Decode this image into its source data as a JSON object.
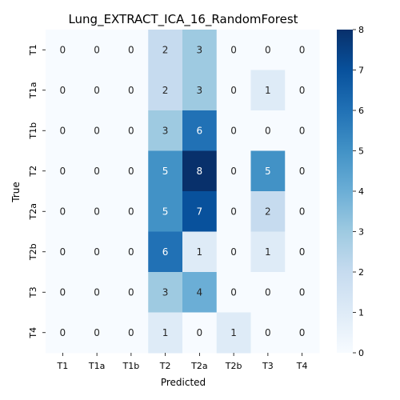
{
  "chart_data": {
    "type": "heatmap",
    "title": "Lung_EXTRACT_ICA_16_RandomForest",
    "xlabel": "Predicted",
    "ylabel": "True",
    "x_categories": [
      "T1",
      "T1a",
      "T1b",
      "T2",
      "T2a",
      "T2b",
      "T3",
      "T4"
    ],
    "y_categories": [
      "T1",
      "T1a",
      "T1b",
      "T2",
      "T2a",
      "T2b",
      "T3",
      "T4"
    ],
    "values": [
      [
        0,
        0,
        0,
        2,
        3,
        0,
        0,
        0
      ],
      [
        0,
        0,
        0,
        2,
        3,
        0,
        1,
        0
      ],
      [
        0,
        0,
        0,
        3,
        6,
        0,
        0,
        0
      ],
      [
        0,
        0,
        0,
        5,
        8,
        0,
        5,
        0
      ],
      [
        0,
        0,
        0,
        5,
        7,
        0,
        2,
        0
      ],
      [
        0,
        0,
        0,
        6,
        1,
        0,
        1,
        0
      ],
      [
        0,
        0,
        0,
        3,
        4,
        0,
        0,
        0
      ],
      [
        0,
        0,
        0,
        1,
        0,
        1,
        0,
        0
      ]
    ],
    "colorbar": {
      "min": 0,
      "max": 8,
      "ticks": [
        "0",
        "1",
        "2",
        "3",
        "4",
        "5",
        "6",
        "7",
        "8"
      ],
      "colormap": "Blues"
    }
  }
}
